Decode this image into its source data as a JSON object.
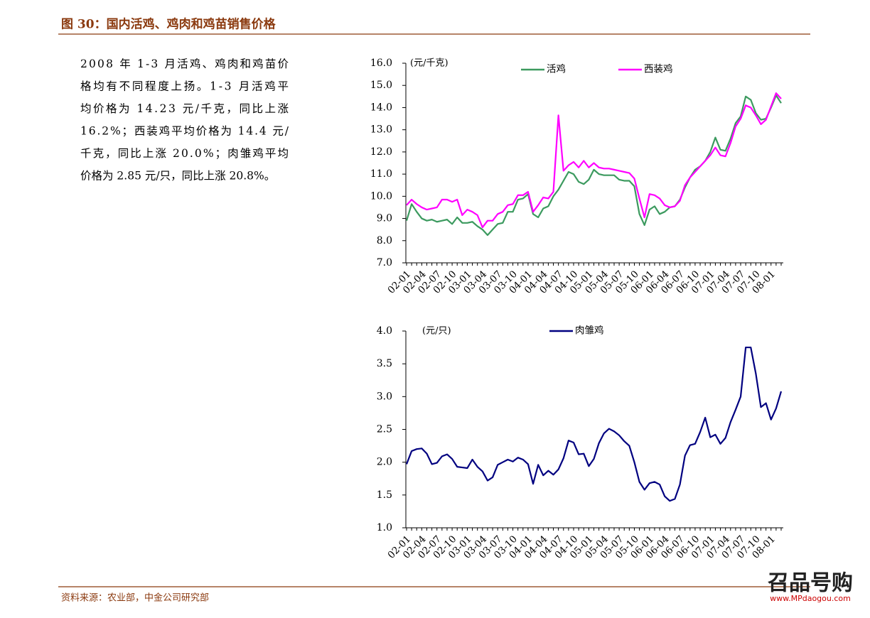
{
  "header": {
    "title": "图 30：国内活鸡、鸡肉和鸡苗销售价格"
  },
  "paragraph": [
    "2008 年 1-3 月活鸡、鸡肉和鸡苗价",
    "格均有不同程度上扬。1-3 月活鸡平",
    "均价格为 14.23 元/千克，同比上涨",
    "16.2%；西装鸡平均价格为 14.4 元/",
    "千克，同比上涨 20.0%；肉雏鸡平均",
    "价格为 2.85 元/只，同比上涨 20.8%。"
  ],
  "chart_data": [
    {
      "type": "line",
      "unit_label": "(元/千克)",
      "legend": "top",
      "categories": [
        "02-01",
        null,
        null,
        "02-04",
        null,
        null,
        "02-07",
        null,
        null,
        "02-10",
        null,
        null,
        "03-01",
        null,
        null,
        "03-04",
        null,
        null,
        "03-07",
        null,
        null,
        "03-10",
        null,
        null,
        "04-01",
        null,
        null,
        "04-04",
        null,
        null,
        "04-07",
        null,
        null,
        "04-10",
        null,
        null,
        "05-01",
        null,
        null,
        "05-04",
        null,
        null,
        "05-07",
        null,
        null,
        "05-10",
        null,
        null,
        "06-01",
        null,
        null,
        "06-04",
        null,
        null,
        "06-07",
        null,
        null,
        "06-10",
        null,
        null,
        "07-01",
        null,
        null,
        "07-04",
        null,
        null,
        "07-07",
        null,
        null,
        "07-10",
        null,
        null,
        "08-01",
        null,
        null
      ],
      "series": [
        {
          "name": "活鸡",
          "color": "#3c9a5f",
          "values": [
            8.9,
            9.65,
            9.3,
            9.0,
            8.9,
            8.95,
            8.85,
            8.9,
            8.95,
            8.75,
            9.05,
            8.8,
            8.8,
            8.85,
            8.65,
            8.5,
            8.25,
            8.5,
            8.75,
            8.8,
            9.3,
            9.3,
            9.85,
            9.9,
            10.1,
            9.2,
            9.05,
            9.45,
            9.55,
            10.0,
            10.3,
            10.7,
            11.1,
            11.0,
            10.65,
            10.55,
            10.75,
            11.2,
            11.0,
            10.95,
            10.95,
            10.95,
            10.75,
            10.7,
            10.7,
            10.45,
            9.2,
            8.7,
            9.4,
            9.55,
            9.2,
            9.3,
            9.5,
            9.55,
            9.85,
            10.4,
            10.85,
            11.2,
            11.35,
            11.6,
            12.0,
            12.65,
            12.1,
            12.05,
            12.6,
            13.3,
            13.6,
            14.5,
            14.35,
            13.75,
            13.45,
            13.5,
            14.0,
            14.55,
            14.2
          ]
        },
        {
          "name": "西装鸡",
          "color": "#ff00ff",
          "values": [
            9.6,
            9.85,
            9.65,
            9.5,
            9.4,
            9.45,
            9.5,
            9.85,
            9.85,
            9.75,
            9.85,
            9.15,
            9.4,
            9.3,
            9.15,
            8.6,
            8.9,
            8.9,
            9.2,
            9.3,
            9.6,
            9.65,
            10.05,
            10.05,
            10.2,
            9.3,
            9.6,
            9.95,
            9.9,
            10.2,
            13.65,
            11.15,
            11.4,
            11.55,
            11.3,
            11.6,
            11.3,
            11.5,
            11.3,
            11.25,
            11.25,
            11.2,
            11.15,
            11.1,
            11.05,
            10.8,
            9.9,
            9.05,
            10.1,
            10.05,
            9.9,
            9.6,
            9.5,
            9.55,
            9.8,
            10.5,
            10.85,
            11.1,
            11.35,
            11.6,
            11.85,
            12.2,
            11.85,
            11.8,
            12.4,
            13.15,
            13.5,
            14.1,
            14.0,
            13.65,
            13.25,
            13.45,
            14.05,
            14.65,
            14.4
          ]
        }
      ],
      "ylim": [
        7,
        16
      ],
      "yticks": [
        {
          "value": 7,
          "label": "7.0"
        },
        {
          "value": 8,
          "label": "8.0"
        },
        {
          "value": 9,
          "label": "9.0"
        },
        {
          "value": 10,
          "label": "10.0"
        },
        {
          "value": 11,
          "label": "11.0"
        },
        {
          "value": 12,
          "label": "12.0"
        },
        {
          "value": 13,
          "label": "13.0"
        },
        {
          "value": 14,
          "label": "14.0"
        },
        {
          "value": 15,
          "label": "15.0"
        },
        {
          "value": 16,
          "label": "16.0"
        }
      ]
    },
    {
      "type": "line",
      "unit_label": "(元/只)",
      "legend": "top",
      "categories": [
        "02-01",
        null,
        null,
        "02-04",
        null,
        null,
        "02-07",
        null,
        null,
        "02-10",
        null,
        null,
        "03-01",
        null,
        null,
        "03-04",
        null,
        null,
        "03-07",
        null,
        null,
        "03-10",
        null,
        null,
        "04-01",
        null,
        null,
        "04-04",
        null,
        null,
        "04-07",
        null,
        null,
        "04-10",
        null,
        null,
        "05-01",
        null,
        null,
        "05-04",
        null,
        null,
        "05-07",
        null,
        null,
        "05-10",
        null,
        null,
        "06-01",
        null,
        null,
        "06-04",
        null,
        null,
        "06-07",
        null,
        null,
        "06-10",
        null,
        null,
        "07-01",
        null,
        null,
        "07-04",
        null,
        null,
        "07-07",
        null,
        null,
        "07-10",
        null,
        null,
        "08-01",
        null,
        null
      ],
      "series": [
        {
          "name": "肉雏鸡",
          "color": "#000080",
          "values": [
            1.97,
            2.17,
            2.2,
            2.21,
            2.13,
            1.97,
            1.99,
            2.09,
            2.12,
            2.05,
            1.93,
            1.92,
            1.91,
            2.04,
            1.93,
            1.86,
            1.72,
            1.77,
            1.96,
            2.0,
            2.04,
            2.01,
            2.07,
            2.04,
            1.97,
            1.67,
            1.96,
            1.8,
            1.87,
            1.81,
            1.89,
            2.06,
            2.33,
            2.3,
            2.12,
            2.13,
            1.94,
            2.05,
            2.29,
            2.44,
            2.51,
            2.47,
            2.41,
            2.32,
            2.25,
            2.0,
            1.7,
            1.58,
            1.68,
            1.7,
            1.66,
            1.48,
            1.41,
            1.44,
            1.66,
            2.1,
            2.26,
            2.28,
            2.46,
            2.68,
            2.38,
            2.42,
            2.28,
            2.37,
            2.61,
            2.8,
            3.0,
            3.75,
            3.75,
            3.35,
            2.84,
            2.9,
            2.65,
            2.82,
            3.08
          ]
        }
      ],
      "ylim": [
        1,
        4
      ],
      "yticks": [
        {
          "value": 1,
          "label": "1.0"
        },
        {
          "value": 1.5,
          "label": "1.5"
        },
        {
          "value": 2,
          "label": "2.0"
        },
        {
          "value": 2.5,
          "label": "2.5"
        },
        {
          "value": 3,
          "label": "3.0"
        },
        {
          "value": 3.5,
          "label": "3.5"
        },
        {
          "value": 4,
          "label": "4.0"
        }
      ]
    }
  ],
  "footer": {
    "source": "资料来源：农业部，中金公司研究部"
  },
  "watermark": {
    "logo": "召品号购",
    "url": "www.MPdaogou.com"
  }
}
